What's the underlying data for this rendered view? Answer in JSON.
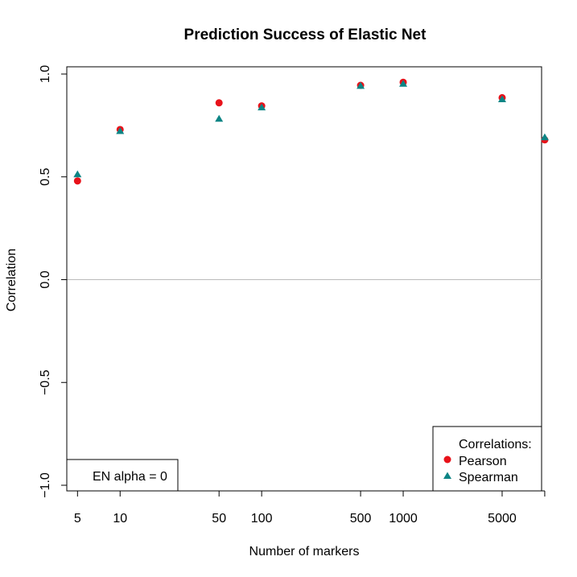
{
  "chart_data": {
    "type": "scatter",
    "title": "Prediction Success of Elastic Net",
    "xlabel": "Number of markers",
    "ylabel": "Correlation",
    "x_scale": "log",
    "xlim": [
      4.2,
      9500
    ],
    "ylim": [
      -1.0,
      1.0
    ],
    "x_ticks": [
      5,
      10,
      50,
      100,
      500,
      1000,
      5000,
      10000
    ],
    "x_tick_labels": [
      "5",
      "10",
      "50",
      "100",
      "500",
      "1000",
      "5000",
      ""
    ],
    "y_ticks": [
      -1.0,
      -0.5,
      0.0,
      0.5,
      1.0
    ],
    "y_tick_labels": [
      "−1.0",
      "−0.5",
      "0.0",
      "0.5",
      "1.0"
    ],
    "reference_line": 0.0,
    "grid": false,
    "x": [
      5,
      10,
      50,
      100,
      500,
      1000,
      5000,
      10000
    ],
    "series": [
      {
        "name": "Pearson",
        "marker": "circle",
        "color": "#e8121a",
        "values": [
          0.48,
          0.73,
          0.86,
          0.845,
          0.945,
          0.96,
          0.885,
          0.68
        ]
      },
      {
        "name": "Spearman",
        "marker": "triangle",
        "color": "#0d8585",
        "values": [
          0.51,
          0.72,
          0.78,
          0.835,
          0.94,
          0.95,
          0.875,
          0.69
        ]
      }
    ],
    "legend": {
      "position": "bottom-right",
      "title": "Correlations:",
      "entries": [
        "Pearson",
        "Spearman"
      ]
    },
    "annotation": {
      "position": "bottom-left",
      "text": "EN alpha = 0"
    }
  }
}
